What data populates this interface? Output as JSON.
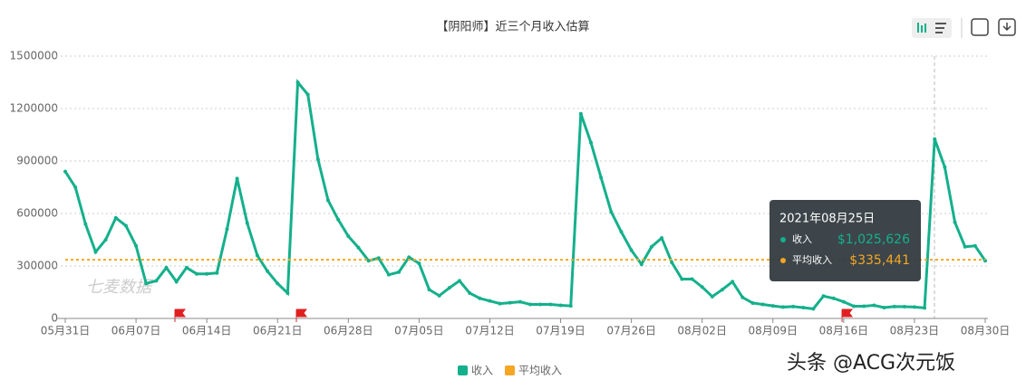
{
  "chart_data": {
    "type": "line",
    "title": "【阴阳师】近三个月收入估算",
    "categories": [
      "05月31日",
      null,
      null,
      null,
      null,
      null,
      null,
      "06月07日",
      null,
      null,
      null,
      null,
      null,
      null,
      "06月14日",
      null,
      null,
      null,
      null,
      null,
      null,
      "06月21日",
      null,
      null,
      null,
      null,
      null,
      null,
      "06月28日",
      null,
      null,
      null,
      null,
      null,
      null,
      "07月05日",
      null,
      null,
      null,
      null,
      null,
      null,
      "07月12日",
      null,
      null,
      null,
      null,
      null,
      null,
      "07月19日",
      null,
      null,
      null,
      null,
      null,
      null,
      "07月26日",
      null,
      null,
      null,
      null,
      null,
      null,
      "08月02日",
      null,
      null,
      null,
      null,
      null,
      null,
      "08月09日",
      null,
      null,
      null,
      null,
      null,
      null,
      "08月16日",
      null,
      null,
      null,
      null,
      null,
      null,
      "08月23日",
      null,
      null,
      null,
      null,
      null,
      null,
      "08月30日"
    ],
    "series": [
      {
        "name": "收入",
        "color": "#14b08b",
        "values": [
          840000,
          750000,
          540000,
          380000,
          450000,
          575000,
          530000,
          415000,
          200000,
          215000,
          290000,
          210000,
          290000,
          255000,
          255000,
          260000,
          510000,
          800000,
          545000,
          360000,
          270000,
          200000,
          145000,
          1350000,
          1280000,
          910000,
          675000,
          565000,
          470000,
          405000,
          330000,
          345000,
          250000,
          265000,
          350000,
          315000,
          165000,
          130000,
          175000,
          215000,
          145000,
          115000,
          100000,
          85000,
          90000,
          95000,
          80000,
          80000,
          80000,
          75000,
          72000,
          1170000,
          1005000,
          805000,
          610000,
          495000,
          390000,
          310000,
          410000,
          460000,
          320000,
          225000,
          225000,
          180000,
          125000,
          165000,
          210000,
          120000,
          88000,
          80000,
          72000,
          65000,
          68000,
          62000,
          55000,
          128000,
          115000,
          95000,
          70000,
          70000,
          75000,
          62000,
          68000,
          67000,
          65000,
          60000,
          1025626,
          865000,
          550000,
          410000,
          415000,
          330000
        ]
      },
      {
        "name": "平均收入",
        "color": "#f5a623",
        "value": 335441
      }
    ],
    "ylim": [
      0,
      1500000
    ],
    "yticks": [
      0,
      300000,
      600000,
      900000,
      1200000,
      1500000
    ],
    "grid": true,
    "tooltip": {
      "date": "2021年08月25日",
      "items": [
        {
          "name": "收入",
          "label": "$1,025,626"
        },
        {
          "name": "平均收入",
          "label": "$335,441"
        }
      ]
    },
    "watermarks": [
      "七麦数据",
      "头条 @ACG次元饭"
    ]
  }
}
